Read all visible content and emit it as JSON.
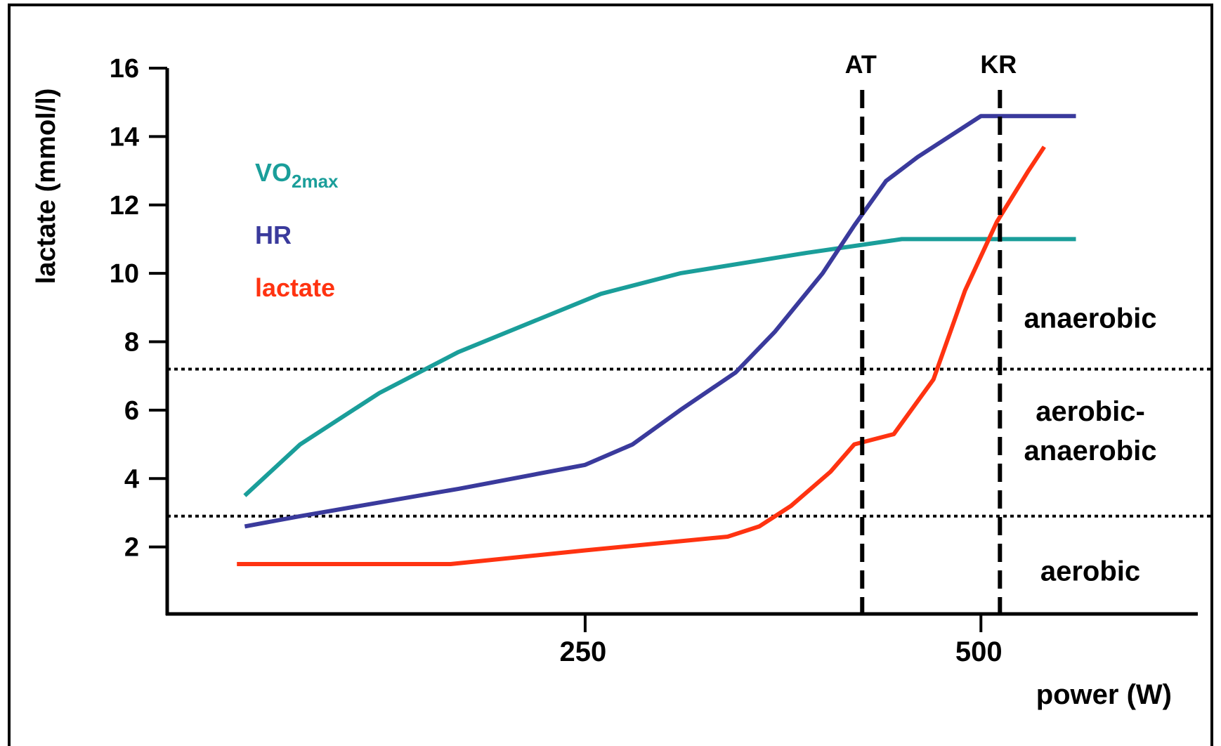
{
  "chart_data": {
    "type": "line",
    "title": "",
    "xlabel": "power (W)",
    "ylabel": "lactate (mmol/l)",
    "xlim": [
      -14,
      637
    ],
    "ylim": [
      0,
      16
    ],
    "x_ticks": [
      {
        "value": 250,
        "label": "250"
      },
      {
        "value": 500,
        "label": "500"
      }
    ],
    "y_ticks": [
      {
        "value": 2,
        "label": "2"
      },
      {
        "value": 4,
        "label": "4"
      },
      {
        "value": 6,
        "label": "6"
      },
      {
        "value": 8,
        "label": "8"
      },
      {
        "value": 10,
        "label": "10"
      },
      {
        "value": 12,
        "label": "12"
      },
      {
        "value": 14,
        "label": "14"
      },
      {
        "value": 16,
        "label": "16"
      }
    ],
    "grid": false,
    "legend_position": "top-left",
    "series": [
      {
        "name": "VO2max",
        "name_main": "VO",
        "name_sub": "2max",
        "color": "#1a9e9a",
        "x": [
          35,
          70,
          120,
          170,
          260,
          310,
          390,
          450,
          460,
          485,
          510,
          560
        ],
        "y": [
          3.5,
          5.0,
          6.5,
          7.7,
          9.4,
          10.0,
          10.6,
          11.0,
          11.0,
          11.0,
          11.0,
          11.0
        ]
      },
      {
        "name": "HR",
        "color": "#3a3a9c",
        "x": [
          35,
          70,
          170,
          250,
          280,
          310,
          345,
          370,
          400,
          420,
          440,
          460,
          480,
          500,
          520,
          560
        ],
        "y": [
          2.6,
          2.9,
          3.7,
          4.4,
          5.0,
          6.0,
          7.1,
          8.3,
          10.0,
          11.4,
          12.7,
          13.4,
          14.0,
          14.6,
          14.6,
          14.6
        ]
      },
      {
        "name": "lactate",
        "color": "#ff3311",
        "x": [
          30,
          80,
          165,
          250,
          340,
          360,
          380,
          405,
          420,
          445,
          470,
          490,
          510,
          530,
          540
        ],
        "y": [
          1.5,
          1.5,
          1.5,
          1.9,
          2.3,
          2.6,
          3.2,
          4.2,
          5.0,
          5.3,
          6.9,
          9.5,
          11.5,
          13.0,
          13.7
        ]
      }
    ],
    "vertical_lines": [
      {
        "label": "AT",
        "x": 425
      },
      {
        "label": "KR",
        "x": 512
      }
    ],
    "horizontal_lines": [
      {
        "y": 7.2
      },
      {
        "y": 2.9
      }
    ],
    "zones": [
      {
        "label_lines": [
          "anaerobic"
        ],
        "y": 8.7
      },
      {
        "label_lines": [
          "aerobic-",
          "anaerobic"
        ],
        "y": 5.4
      },
      {
        "label_lines": [
          "aerobic"
        ],
        "y": 1.3
      }
    ]
  }
}
